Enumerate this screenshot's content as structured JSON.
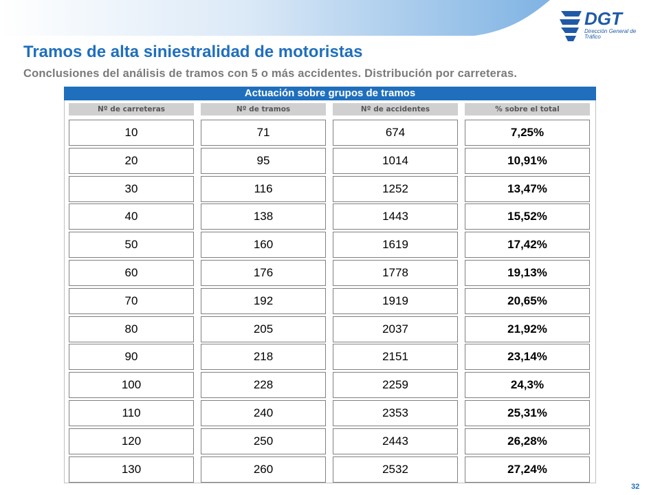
{
  "header": {
    "logo_text": "DGT",
    "logo_subtitle": "Dirección General de Tráfico"
  },
  "title": "Tramos de alta siniestralidad de motoristas",
  "subtitle": "Conclusiones del análisis de tramos con 5 o más accidentes. Distribución por carreteras.",
  "section_header": "Actuación sobre grupos de tramos",
  "columns": [
    "Nº de carreteras",
    "Nº de tramos",
    "Nº de accidentes",
    "% sobre el total"
  ],
  "rows": [
    [
      "10",
      "71",
      "674",
      "7,25%"
    ],
    [
      "20",
      "95",
      "1014",
      "10,91%"
    ],
    [
      "30",
      "116",
      "1252",
      "13,47%"
    ],
    [
      "40",
      "138",
      "1443",
      "15,52%"
    ],
    [
      "50",
      "160",
      "1619",
      "17,42%"
    ],
    [
      "60",
      "176",
      "1778",
      "19,13%"
    ],
    [
      "70",
      "192",
      "1919",
      "20,65%"
    ],
    [
      "80",
      "205",
      "2037",
      "21,92%"
    ],
    [
      "90",
      "218",
      "2151",
      "23,14%"
    ],
    [
      "100",
      "228",
      "2259",
      "24,3%"
    ],
    [
      "110",
      "240",
      "2353",
      "25,31%"
    ],
    [
      "120",
      "250",
      "2443",
      "26,28%"
    ],
    [
      "130",
      "260",
      "2532",
      "27,24%"
    ]
  ],
  "page_number": "32",
  "colors": {
    "brand_blue": "#1f6fbd",
    "header_gray": "#d0d0d0"
  }
}
